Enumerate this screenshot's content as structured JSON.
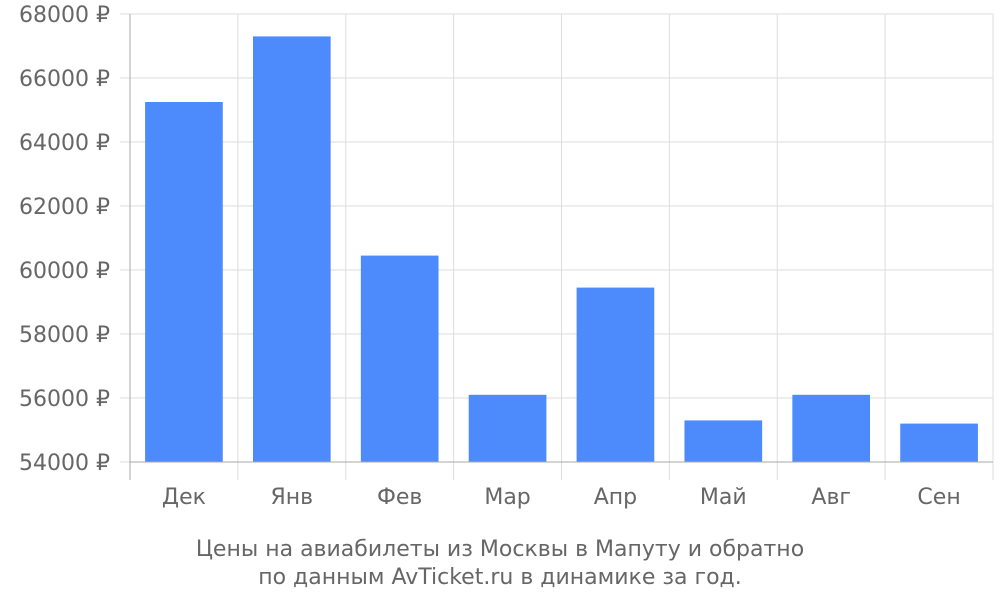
{
  "chart_data": {
    "type": "bar",
    "categories": [
      "Дек",
      "Янв",
      "Фев",
      "Мар",
      "Апр",
      "Май",
      "Авг",
      "Сен"
    ],
    "values": [
      65250,
      67300,
      60450,
      56100,
      59450,
      55300,
      56100,
      55200
    ],
    "ylim": [
      54000,
      68000
    ],
    "y_ticks": [
      54000,
      56000,
      58000,
      60000,
      62000,
      64000,
      66000,
      68000
    ],
    "y_tick_labels": [
      "54000 ₽",
      "56000 ₽",
      "58000 ₽",
      "60000 ₽",
      "62000 ₽",
      "64000 ₽",
      "66000 ₽",
      "68000 ₽"
    ],
    "bar_color": "#4d8afb",
    "grid": true,
    "legend": "none"
  },
  "caption": {
    "line1": "Цены на авиабилеты из Москвы в Мапуту и обратно",
    "line2": "по данным AvTicket.ru в динамике за год."
  }
}
